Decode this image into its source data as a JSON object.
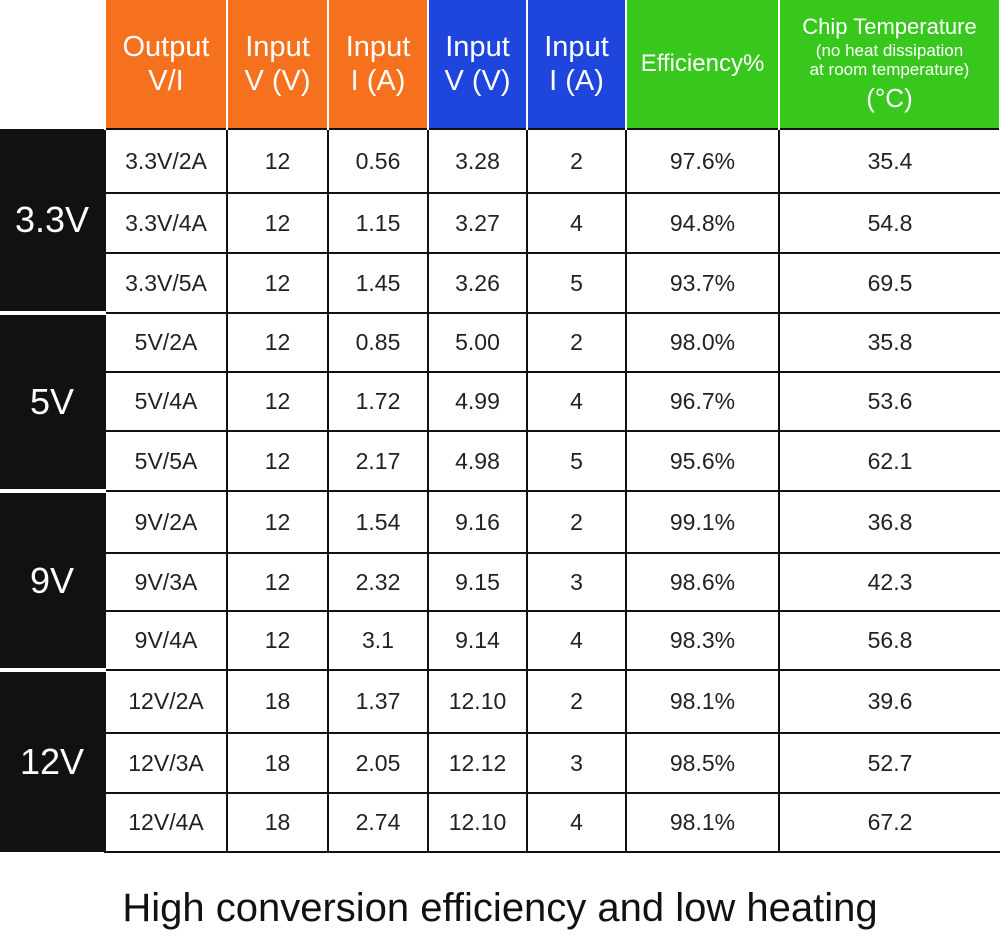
{
  "colors": {
    "orange": "#f5711d",
    "blue": "#1f46dc",
    "green": "#38c81d",
    "black": "#111111"
  },
  "header": {
    "output": [
      "Output",
      "V/I"
    ],
    "input_v_orange": [
      "Input",
      "V (V)"
    ],
    "input_i_orange": [
      "Input",
      "I (A)"
    ],
    "input_v_blue": [
      "Input",
      "V (V)"
    ],
    "input_i_blue": [
      "Input",
      "I (A)"
    ],
    "efficiency": "Efficiency%",
    "temperature": {
      "title": "Chip Temperature",
      "note_line1": "(no heat dissipation",
      "note_line2": "at room temperature)",
      "unit": "(°C)"
    }
  },
  "groups": [
    {
      "label": "3.3V",
      "rows": [
        [
          "3.3V/2A",
          "12",
          "0.56",
          "3.28",
          "2",
          "97.6%",
          "35.4"
        ],
        [
          "3.3V/4A",
          "12",
          "1.15",
          "3.27",
          "4",
          "94.8%",
          "54.8"
        ],
        [
          "3.3V/5A",
          "12",
          "1.45",
          "3.26",
          "5",
          "93.7%",
          "69.5"
        ]
      ]
    },
    {
      "label": "5V",
      "rows": [
        [
          "5V/2A",
          "12",
          "0.85",
          "5.00",
          "2",
          "98.0%",
          "35.8"
        ],
        [
          "5V/4A",
          "12",
          "1.72",
          "4.99",
          "4",
          "96.7%",
          "53.6"
        ],
        [
          "5V/5A",
          "12",
          "2.17",
          "4.98",
          "5",
          "95.6%",
          "62.1"
        ]
      ]
    },
    {
      "label": "9V",
      "rows": [
        [
          "9V/2A",
          "12",
          "1.54",
          "9.16",
          "2",
          "99.1%",
          "36.8"
        ],
        [
          "9V/3A",
          "12",
          "2.32",
          "9.15",
          "3",
          "98.6%",
          "42.3"
        ],
        [
          "9V/4A",
          "12",
          "3.1",
          "9.14",
          "4",
          "98.3%",
          "56.8"
        ]
      ]
    },
    {
      "label": "12V",
      "rows": [
        [
          "12V/2A",
          "18",
          "1.37",
          "12.10",
          "2",
          "98.1%",
          "39.6"
        ],
        [
          "12V/3A",
          "18",
          "2.05",
          "12.12",
          "3",
          "98.5%",
          "52.7"
        ],
        [
          "12V/4A",
          "18",
          "2.74",
          "12.10",
          "4",
          "98.1%",
          "67.2"
        ]
      ]
    }
  ],
  "caption": "High conversion efficiency and low heating"
}
